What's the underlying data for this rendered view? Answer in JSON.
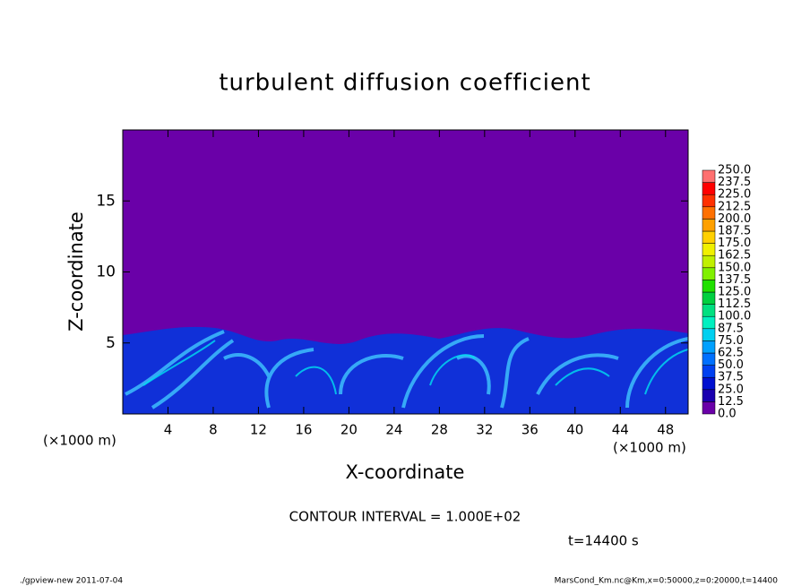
{
  "chart_data": {
    "type": "heatmap",
    "title": "turbulent diffusion coefficient",
    "x_label": "X-coordinate",
    "y_label": "Z-coordinate",
    "x_unit_left": "(×1000 m)",
    "x_unit_right": "(×1000 m)",
    "xlim": [
      0,
      50
    ],
    "ylim": [
      0,
      20
    ],
    "xticks": [
      4,
      8,
      12,
      16,
      20,
      24,
      28,
      32,
      36,
      40,
      44,
      48
    ],
    "yticks": [
      5,
      10,
      15
    ],
    "contour_note": "CONTOUR INTERVAL = 1.000E+02",
    "time_note": "t=14400 s",
    "footer_left": "./gpview-new  2011-07-04",
    "footer_right": "MarsCond_Km.nc@Km,x=0:50000,z=0:20000,t=14400",
    "colorbar": {
      "ticks": [
        {
          "value": 0,
          "label": "0.0"
        },
        12.5,
        {
          "value": 25,
          "label": "25.0"
        },
        37.5,
        {
          "value": 50,
          "label": "50.0"
        },
        62.5,
        {
          "value": 75,
          "label": "75.0"
        },
        87.5,
        {
          "value": 100,
          "label": "100.0"
        },
        112.5,
        {
          "value": 125,
          "label": "125.0"
        },
        137.5,
        {
          "value": 150,
          "label": "150.0"
        },
        162.5,
        {
          "value": 175,
          "label": "175.0"
        },
        187.5,
        {
          "value": 200,
          "label": "200.0"
        },
        212.5,
        {
          "value": 225,
          "label": "225.0"
        },
        237.5,
        {
          "value": 250,
          "label": "250.0"
        }
      ],
      "colors": [
        "#6a00a8",
        "#1a00b0",
        "#0010d0",
        "#0040f0",
        "#0070ff",
        "#00a0ff",
        "#00d0f0",
        "#00f0c0",
        "#00e080",
        "#00d040",
        "#20e000",
        "#80f000",
        "#c0f000",
        "#f0f000",
        "#ffd000",
        "#ffa000",
        "#ff7000",
        "#ff3000",
        "#ff0000",
        "#ff7070"
      ]
    }
  }
}
